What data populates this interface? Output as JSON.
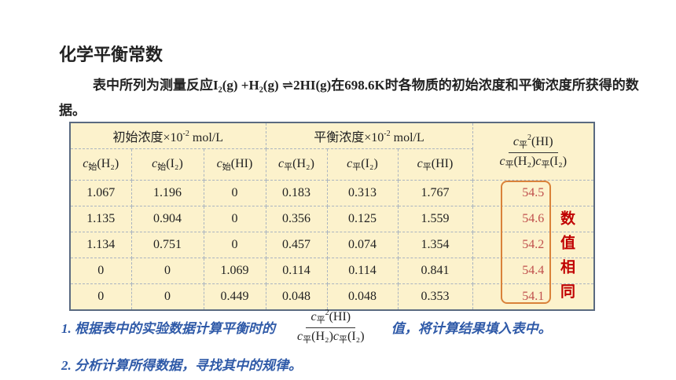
{
  "title": "化学平衡常数",
  "intro": "表中所列为测量反应I₂(g) +H₂(g) ⇌2HI(g)在698.6K时各物质的初始浓度和平衡浓度所获得的数据。",
  "table": {
    "group_headers": [
      {
        "text": "初始浓度×10",
        "sup": "-2",
        "unit": "mol/L"
      },
      {
        "text": "平衡浓度×10",
        "sup": "-2",
        "unit": "mol/L"
      }
    ],
    "ratio_header": {
      "numerator": {
        "c": "c",
        "sub": "平",
        "sup": "2",
        "species": "(HI)"
      },
      "denominator": [
        {
          "c": "c",
          "sub": "平",
          "species": "(H₂)"
        },
        {
          "c": "c",
          "sub": "平",
          "species": "(I₂)"
        }
      ]
    },
    "column_headers": [
      {
        "c": "c",
        "sub": "始",
        "species": "(H₂)"
      },
      {
        "c": "c",
        "sub": "始",
        "species": "(I₂)"
      },
      {
        "c": "c",
        "sub": "始",
        "species": "(HI)"
      },
      {
        "c": "c",
        "sub": "平",
        "species": "(H₂)"
      },
      {
        "c": "c",
        "sub": "平",
        "species": "(I₂)"
      },
      {
        "c": "c",
        "sub": "平",
        "species": "(HI)"
      }
    ],
    "rows": [
      [
        1.067,
        1.196,
        0,
        0.183,
        0.313,
        1.767,
        54.5
      ],
      [
        1.135,
        0.904,
        0,
        0.356,
        0.125,
        1.559,
        54.6
      ],
      [
        1.134,
        0.751,
        0,
        0.457,
        0.074,
        1.354,
        54.2
      ],
      [
        0,
        0,
        1.069,
        0.114,
        0.114,
        0.841,
        54.4
      ],
      [
        0,
        0,
        0.449,
        0.048,
        0.048,
        0.353,
        54.1
      ]
    ]
  },
  "note": "数值相同",
  "questions": [
    {
      "before": "1. 根据表中的实验数据计算平衡时的",
      "fraction": {
        "numerator": {
          "c": "c",
          "sub": "平",
          "sup": "2",
          "species": "(HI)"
        },
        "denominator": [
          {
            "c": "c",
            "sub": "平",
            "species": "(H₂)"
          },
          {
            "c": "c",
            "sub": "平",
            "species": "(I₂)"
          }
        ]
      },
      "after": "值，将计算结果填入表中。"
    },
    {
      "text": "2. 分析计算所得数据，寻找其中的规律。"
    }
  ]
}
